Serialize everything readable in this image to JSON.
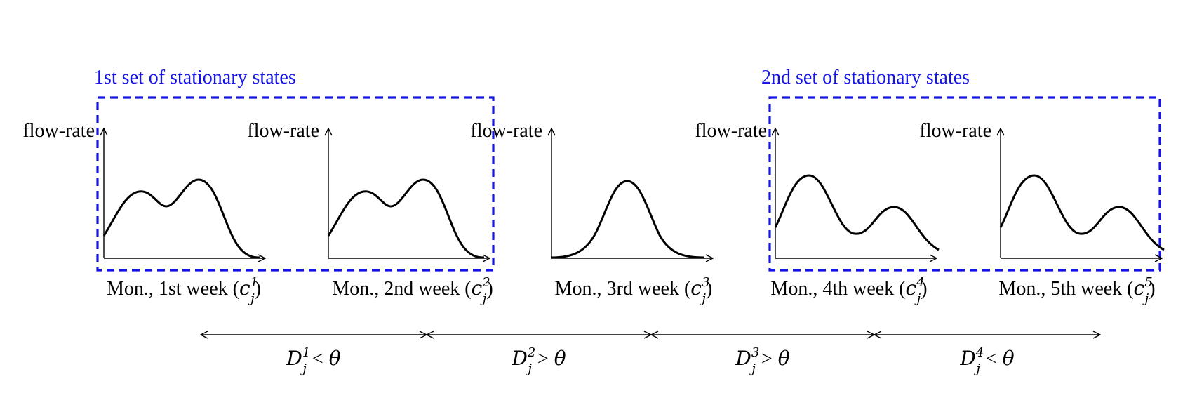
{
  "groups": [
    {
      "label": "1st set of stationary states",
      "color": "#1414e6"
    },
    {
      "label": "2nd set of stationary states",
      "color": "#1414e6"
    }
  ],
  "panels": [
    {
      "ylabel": "flow-rate",
      "caption": "Mon., 1st week (",
      "c_sup": "1",
      "c_sub": "j",
      "close": ")",
      "curve": "bimodal-right-peak"
    },
    {
      "ylabel": "flow-rate",
      "caption": "Mon., 2nd week (",
      "c_sup": "2",
      "c_sub": "j",
      "close": ")",
      "curve": "bimodal-right-peak"
    },
    {
      "ylabel": "flow-rate",
      "caption": "Mon., 3rd week (",
      "c_sup": "3",
      "c_sub": "j",
      "close": ")",
      "curve": "unimodal"
    },
    {
      "ylabel": "flow-rate",
      "caption": "Mon., 4th week (",
      "c_sup": "4",
      "c_sub": "j",
      "close": ")",
      "curve": "bimodal-left-peak"
    },
    {
      "ylabel": "flow-rate",
      "caption": "Mon., 5th week (",
      "c_sup": "5",
      "c_sub": "j",
      "close": ")",
      "curve": "bimodal-left-peak"
    }
  ],
  "distances": [
    {
      "symbol": "D",
      "sup": "1",
      "sub": "j",
      "relation": "<",
      "threshold": "θ"
    },
    {
      "symbol": "D",
      "sup": "2",
      "sub": "j",
      "relation": ">",
      "threshold": "θ"
    },
    {
      "symbol": "D",
      "sup": "3",
      "sub": "j",
      "relation": ">",
      "threshold": "θ"
    },
    {
      "symbol": "D",
      "sup": "4",
      "sub": "j",
      "relation": "<",
      "threshold": "θ"
    }
  ]
}
